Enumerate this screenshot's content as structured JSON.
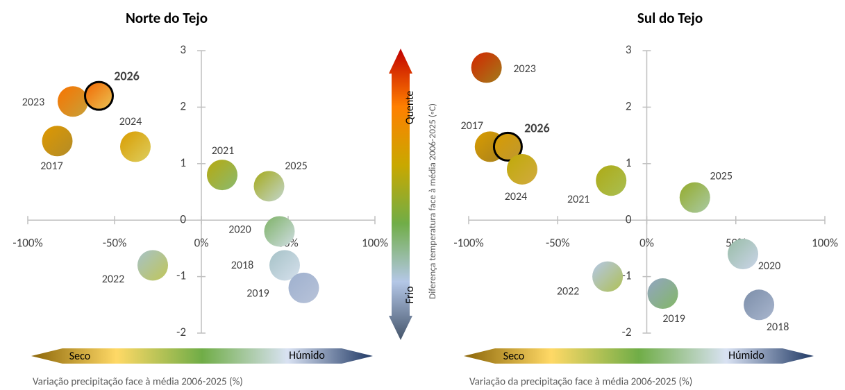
{
  "chart_data": [
    {
      "type": "scatter",
      "title": "Norte do Tejo",
      "xlabel": "Variação precipitação face à média 2006-2025 (%)",
      "labels": [
        "2023",
        "2026",
        "2017",
        "2024",
        "2021",
        "2025",
        "2020",
        "2018",
        "2019",
        "2022"
      ],
      "x": [
        -74,
        -59,
        -83,
        -38,
        12,
        39,
        45,
        48,
        59,
        -28
      ],
      "y": [
        2.1,
        2.2,
        1.4,
        1.3,
        0.8,
        0.6,
        -0.2,
        -0.8,
        -1.2,
        -0.8
      ],
      "highlighted": "2026",
      "xlim": [
        -100,
        100
      ],
      "xticks": [
        {
          "value": -100,
          "label": "-100%"
        },
        {
          "value": -50,
          "label": "-50%"
        },
        {
          "value": 0,
          "label": "0%"
        },
        {
          "value": 50,
          "label": "50%"
        },
        {
          "value": 100,
          "label": "100%"
        }
      ],
      "ylim": [
        -2,
        3
      ],
      "yticks": [
        -2,
        -1,
        0,
        1,
        2,
        3
      ],
      "x_colorbar": {
        "low": "Seco",
        "high": "Húmido",
        "colors": [
          "#8b6508",
          "#ffd966",
          "#70ad47",
          "#d9e2f3",
          "#1f3864"
        ]
      }
    },
    {
      "type": "scatter",
      "title": "Sul do Tejo",
      "xlabel": "Variação da precipitação face à média 2006-2025 (%)",
      "labels": [
        "2023",
        "2017",
        "2026",
        "2024",
        "2021",
        "2025",
        "2020",
        "2022",
        "2019",
        "2018"
      ],
      "x": [
        -90,
        -88,
        -78,
        -70,
        -20,
        27,
        54,
        -22,
        9,
        63
      ],
      "y": [
        2.7,
        1.3,
        1.3,
        0.9,
        0.7,
        0.4,
        -0.6,
        -1.0,
        -1.3,
        -1.5
      ],
      "highlighted": "2026",
      "xlim": [
        -100,
        100
      ],
      "xticks": [
        {
          "value": -100,
          "label": "-100%"
        },
        {
          "value": -50,
          "label": "-50%"
        },
        {
          "value": 0,
          "label": "0%"
        },
        {
          "value": 50,
          "label": "50%"
        },
        {
          "value": 100,
          "label": "100%"
        }
      ],
      "ylim": [
        -2,
        3
      ],
      "yticks": [
        -2,
        -1,
        0,
        1,
        2,
        3
      ],
      "x_colorbar": {
        "low": "Seco",
        "high": "Húmido",
        "colors": [
          "#8b6508",
          "#ffd966",
          "#70ad47",
          "#d9e2f3",
          "#1f3864"
        ]
      }
    }
  ],
  "y_colorbar": {
    "label": "Diferença temperatura face à média 2006-2025 (◦C)",
    "low": "Frio",
    "high": "Quente",
    "colors": [
      "#44546a",
      "#b4c7e7",
      "#70ad47",
      "#c9a800",
      "#ff8000",
      "#c00000"
    ]
  }
}
